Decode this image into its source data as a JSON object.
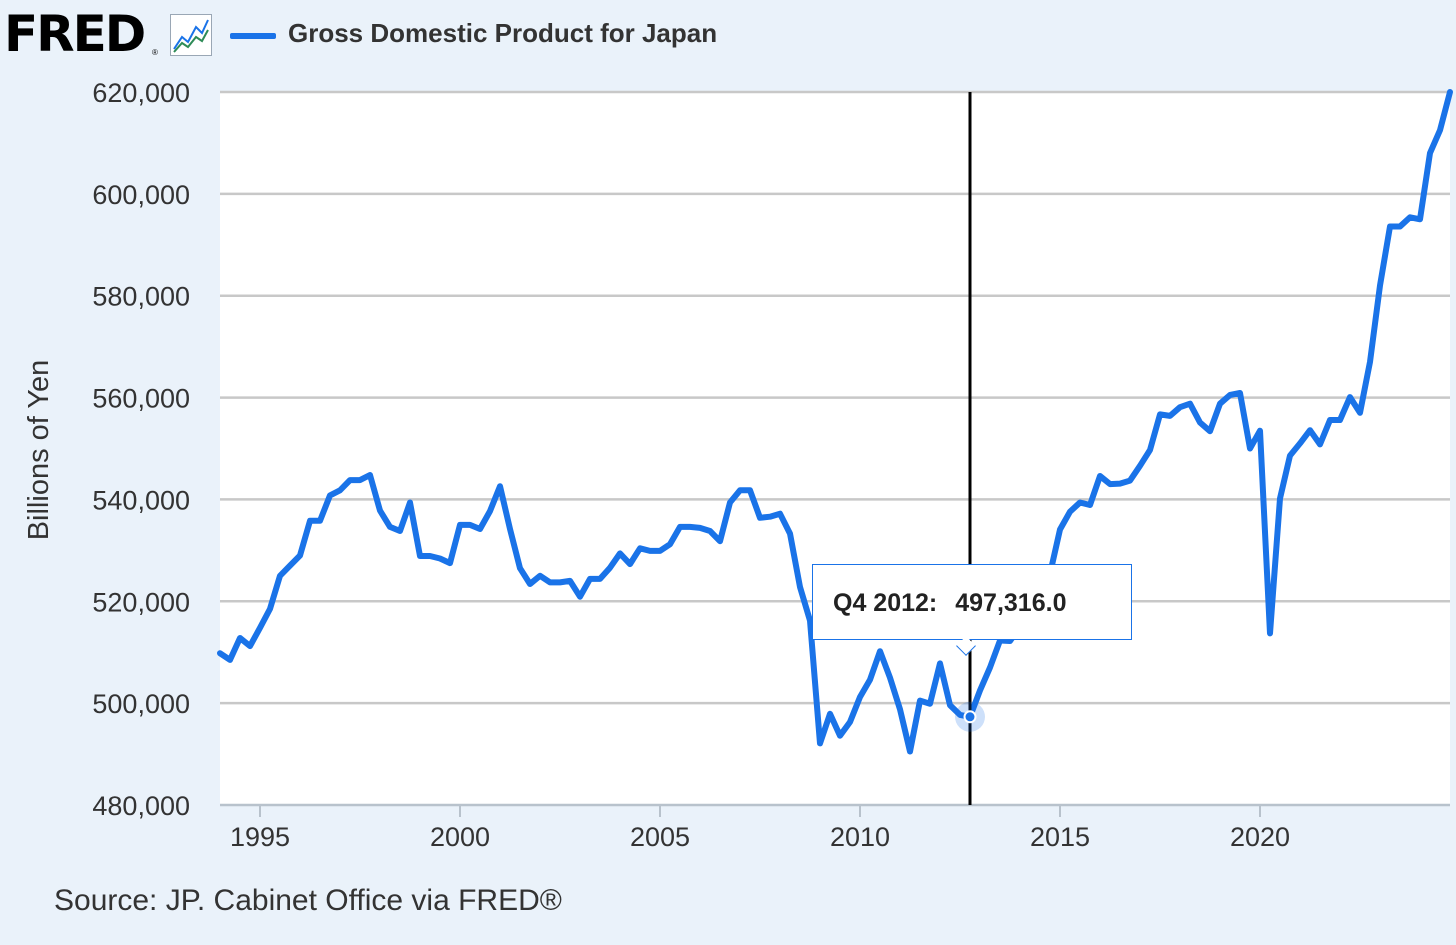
{
  "header": {
    "logo_text": "FRED",
    "logo_reg": "®",
    "icon": "trend-line-icon",
    "series_color": "#1a73e8"
  },
  "chart_data": {
    "type": "line",
    "legend": "Gross Domestic Product for Japan",
    "ylabel": "Billions of Yen",
    "xlabel": "",
    "ylim": [
      480000,
      620000
    ],
    "xlim": [
      1994.0,
      2024.75
    ],
    "yticks": [
      "480,000",
      "500,000",
      "520,000",
      "540,000",
      "560,000",
      "580,000",
      "600,000",
      "620,000"
    ],
    "xticks": [
      "1995",
      "2000",
      "2005",
      "2010",
      "2015",
      "2020"
    ],
    "grid": true,
    "tooltip": {
      "period": "Q4 2012:",
      "value": "497,316.0",
      "x": 2012.75,
      "y": 497316
    },
    "series": [
      {
        "name": "Gross Domestic Product for Japan",
        "color": "#1a73e8",
        "x": [
          1994.0,
          1994.25,
          1994.5,
          1994.75,
          1995.0,
          1995.25,
          1995.5,
          1995.75,
          1996.0,
          1996.25,
          1996.5,
          1996.75,
          1997.0,
          1997.25,
          1997.5,
          1997.75,
          1998.0,
          1998.25,
          1998.5,
          1998.75,
          1999.0,
          1999.25,
          1999.5,
          1999.75,
          2000.0,
          2000.25,
          2000.5,
          2000.75,
          2001.0,
          2001.25,
          2001.5,
          2001.75,
          2002.0,
          2002.25,
          2002.5,
          2002.75,
          2003.0,
          2003.25,
          2003.5,
          2003.75,
          2004.0,
          2004.25,
          2004.5,
          2004.75,
          2005.0,
          2005.25,
          2005.5,
          2005.75,
          2006.0,
          2006.25,
          2006.5,
          2006.75,
          2007.0,
          2007.25,
          2007.5,
          2007.75,
          2008.0,
          2008.25,
          2008.5,
          2008.75,
          2009.0,
          2009.25,
          2009.5,
          2009.75,
          2010.0,
          2010.25,
          2010.5,
          2010.75,
          2011.0,
          2011.25,
          2011.5,
          2011.75,
          2012.0,
          2012.25,
          2012.5,
          2012.75,
          2013.0,
          2013.25,
          2013.5,
          2013.75,
          2014.0,
          2014.25,
          2014.5,
          2014.75,
          2015.0,
          2015.25,
          2015.5,
          2015.75,
          2016.0,
          2016.25,
          2016.5,
          2016.75,
          2017.0,
          2017.25,
          2017.5,
          2017.75,
          2018.0,
          2018.25,
          2018.5,
          2018.75,
          2019.0,
          2019.25,
          2019.5,
          2019.75,
          2020.0,
          2020.25,
          2020.5,
          2020.75,
          2021.0,
          2021.25,
          2021.5,
          2021.75,
          2022.0,
          2022.25,
          2022.5,
          2022.75,
          2023.0,
          2023.25,
          2023.5,
          2023.75,
          2024.0,
          2024.25,
          2024.5,
          2024.75
        ],
        "values": [
          509800,
          508500,
          512800,
          511200,
          514800,
          518500,
          525000,
          527000,
          529000,
          535800,
          535800,
          540800,
          541800,
          543800,
          543800,
          544800,
          537800,
          534600,
          533800,
          539400,
          528900,
          528900,
          528400,
          527500,
          535000,
          535000,
          534200,
          537700,
          542600,
          534200,
          526500,
          523400,
          525000,
          523700,
          523700,
          524000,
          520900,
          524400,
          524400,
          526600,
          529400,
          527300,
          530400,
          529900,
          529900,
          531200,
          534600,
          534600,
          534400,
          533800,
          531800,
          539400,
          541800,
          541800,
          536400,
          536600,
          537200,
          533300,
          522800,
          516200,
          492100,
          497900,
          493600,
          496300,
          501200,
          504600,
          510200,
          505000,
          498800,
          490500,
          500500,
          499900,
          507800,
          499600,
          497700,
          497316,
          502500,
          507000,
          512300,
          512200,
          515000,
          518900,
          523800,
          525400,
          534100,
          537600,
          539400,
          538900,
          544600,
          543000,
          543100,
          543700,
          546600,
          549700,
          556700,
          556400,
          558100,
          558800,
          555100,
          553400,
          558800,
          560500,
          560900,
          550000,
          553500,
          513700,
          540200,
          548600,
          551000,
          553600,
          550800,
          555600,
          555600,
          560100,
          557000,
          567000,
          582000,
          593600,
          593600,
          595400,
          595000,
          608000,
          612500,
          620000
        ]
      }
    ]
  },
  "source": "Source: JP. Cabinet Office via FRED®"
}
